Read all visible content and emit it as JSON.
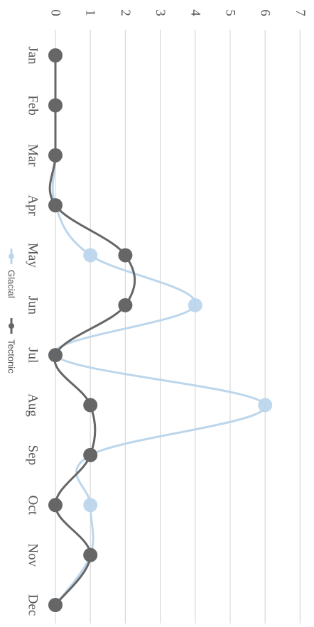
{
  "chart_data": {
    "type": "line",
    "orientation": "rotated-90-clockwise",
    "categories": [
      "Jan",
      "Feb",
      "Mar",
      "Apr",
      "May",
      "Jun",
      "Jul",
      "Aug",
      "Sep",
      "Oct",
      "Nov",
      "Dec"
    ],
    "series": [
      {
        "name": "Glacial",
        "color": "#bcd6ec",
        "values": [
          0,
          0,
          0,
          0,
          1,
          4,
          0,
          6,
          1,
          1,
          1,
          0
        ]
      },
      {
        "name": "Tectonic",
        "color": "#666666",
        "values": [
          0,
          0,
          0,
          0,
          2,
          2,
          0,
          1,
          1,
          0,
          1,
          0
        ]
      }
    ],
    "y_ticks": [
      "0",
      "1",
      "2",
      "3",
      "4",
      "5",
      "6",
      "7"
    ],
    "ylim": [
      0,
      7
    ],
    "grid": true,
    "legend_position": "bottom",
    "gridline_color": "#d8d8d8"
  }
}
